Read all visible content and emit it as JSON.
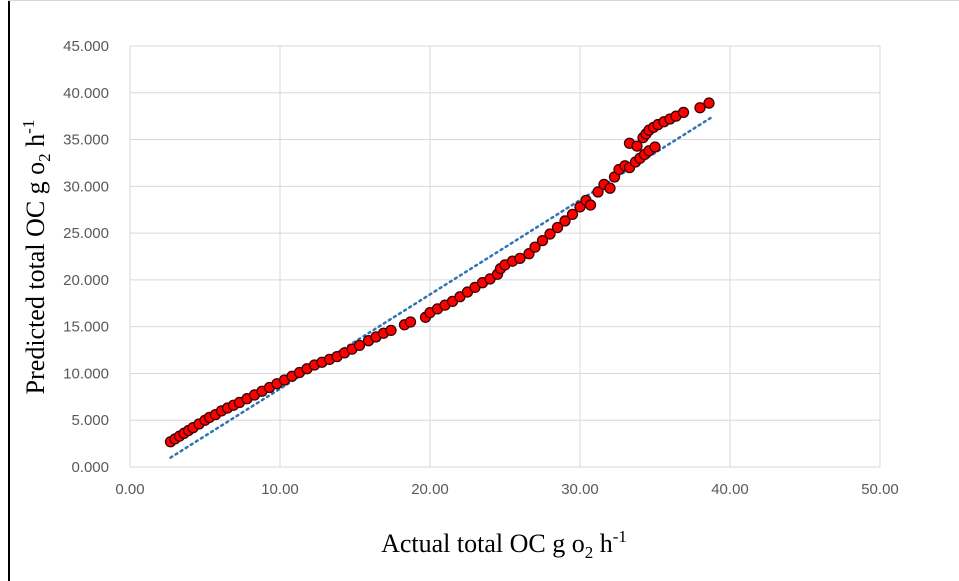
{
  "chart_data": {
    "type": "scatter",
    "title": "",
    "xlabel": {
      "base": "Actual total OC g o",
      "sub": "2",
      "mid": " h",
      "sup": "-1"
    },
    "ylabel": {
      "base": "Predicted total OC g o",
      "sub": "2",
      "mid": " h",
      "sup": "-1"
    },
    "xlim": [
      0,
      50
    ],
    "ylim": [
      0,
      45
    ],
    "x_ticks": [
      "0.00",
      "10.00",
      "20.00",
      "30.00",
      "40.00",
      "50.00"
    ],
    "x_tick_values": [
      0,
      10,
      20,
      30,
      40,
      50
    ],
    "y_ticks": [
      "0.000",
      "5.000",
      "10.000",
      "15.000",
      "20.000",
      "25.000",
      "30.000",
      "35.000",
      "40.000",
      "45.000"
    ],
    "y_tick_values": [
      0,
      5,
      10,
      15,
      20,
      25,
      30,
      35,
      40,
      45
    ],
    "grid": true,
    "legend": "none",
    "marker_color": "#ff0000",
    "marker_edge_color": "#3a0000",
    "trendline_color": "#2e75b6",
    "trendline": {
      "type": "linear",
      "x": [
        2.7,
        38.7
      ],
      "y": [
        1.0,
        37.3
      ]
    },
    "series": [
      {
        "x": [
          2.7,
          3.0,
          3.3,
          3.6,
          3.9,
          4.2,
          4.6,
          5.0,
          5.3,
          5.7,
          6.1,
          6.5,
          6.9,
          7.3,
          7.8,
          8.3,
          8.8,
          9.3,
          9.8,
          10.3,
          10.8,
          11.3,
          11.8,
          12.3,
          12.8,
          13.3,
          13.8,
          14.3,
          14.8,
          15.3,
          15.9,
          16.4,
          16.9,
          17.4,
          18.3,
          18.7,
          19.7,
          20.0,
          20.5,
          21.0,
          21.5,
          22.0,
          22.5,
          23.0,
          23.5,
          24.0,
          24.5,
          24.7,
          25.0,
          25.5,
          26.0,
          26.6,
          27.0,
          27.5,
          28.0,
          28.5,
          29.0,
          29.5,
          30.0,
          30.4,
          30.7,
          31.2,
          31.6,
          32.0,
          32.3,
          32.6,
          33.0,
          33.3,
          33.7,
          34.0,
          34.3,
          34.6,
          35.0,
          33.3,
          33.8,
          34.2,
          34.4,
          34.6,
          34.9,
          35.2,
          35.6,
          36.0,
          36.4,
          36.9,
          38.0,
          38.6
        ],
        "y": [
          2.7,
          3.0,
          3.3,
          3.6,
          3.9,
          4.2,
          4.6,
          5.0,
          5.3,
          5.6,
          6.0,
          6.3,
          6.6,
          6.9,
          7.3,
          7.7,
          8.1,
          8.5,
          8.9,
          9.3,
          9.7,
          10.1,
          10.5,
          10.9,
          11.2,
          11.5,
          11.8,
          12.2,
          12.6,
          13.0,
          13.5,
          13.9,
          14.3,
          14.6,
          15.2,
          15.5,
          16.0,
          16.5,
          16.9,
          17.3,
          17.7,
          18.2,
          18.7,
          19.2,
          19.7,
          20.1,
          20.6,
          21.2,
          21.6,
          22.0,
          22.3,
          22.8,
          23.5,
          24.2,
          24.9,
          25.6,
          26.3,
          27.0,
          27.8,
          28.5,
          28.0,
          29.4,
          30.2,
          29.8,
          31.0,
          31.8,
          32.2,
          32.0,
          32.6,
          33.0,
          33.4,
          33.8,
          34.2,
          34.6,
          34.3,
          35.2,
          35.6,
          36.0,
          36.3,
          36.6,
          36.9,
          37.2,
          37.5,
          37.9,
          38.4,
          38.9
        ]
      }
    ]
  }
}
